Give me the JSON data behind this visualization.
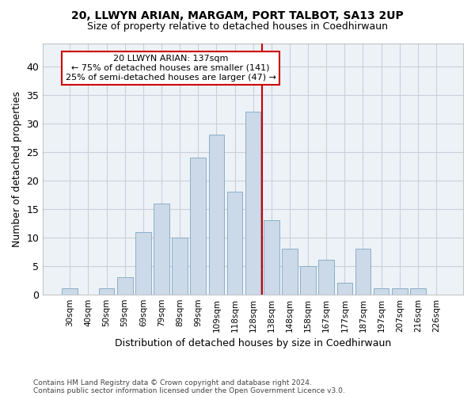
{
  "title1": "20, LLWYN ARIAN, MARGAM, PORT TALBOT, SA13 2UP",
  "title2": "Size of property relative to detached houses in Coedhirwaun",
  "xlabel": "Distribution of detached houses by size in Coedhirwaun",
  "ylabel": "Number of detached properties",
  "footnote1": "Contains HM Land Registry data © Crown copyright and database right 2024.",
  "footnote2": "Contains public sector information licensed under the Open Government Licence v3.0.",
  "bar_labels": [
    "30sqm",
    "40sqm",
    "50sqm",
    "59sqm",
    "69sqm",
    "79sqm",
    "89sqm",
    "99sqm",
    "109sqm",
    "118sqm",
    "128sqm",
    "138sqm",
    "148sqm",
    "158sqm",
    "167sqm",
    "177sqm",
    "187sqm",
    "197sqm",
    "207sqm",
    "216sqm",
    "226sqm"
  ],
  "bar_values": [
    1,
    0,
    1,
    3,
    11,
    16,
    10,
    24,
    28,
    18,
    32,
    13,
    8,
    5,
    6,
    2,
    8,
    1,
    1,
    1,
    0
  ],
  "bar_color": "#ccd9e8",
  "bar_edge_color": "#7fa8c0",
  "annotation_box_text": "20 LLWYN ARIAN: 137sqm\n← 75% of detached houses are smaller (141)\n25% of semi-detached houses are larger (47) →",
  "annotation_box_color": "#cc0000",
  "grid_color": "#c8d0da",
  "bg_color": "#edf2f7",
  "ylim": [
    0,
    44
  ],
  "yticks": [
    0,
    5,
    10,
    15,
    20,
    25,
    30,
    35,
    40
  ]
}
